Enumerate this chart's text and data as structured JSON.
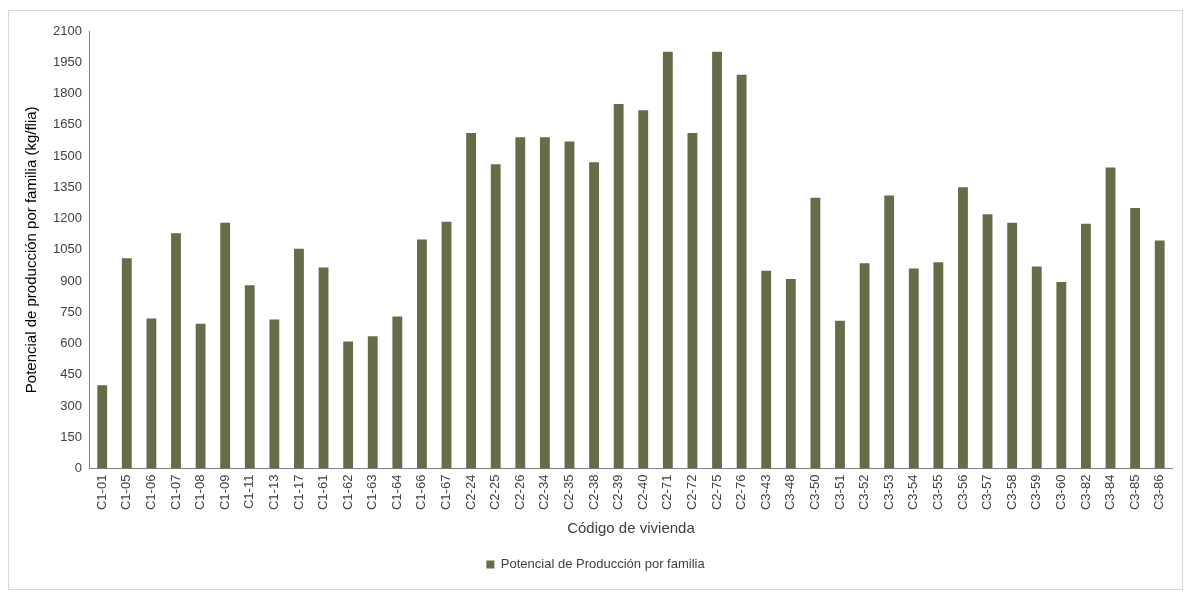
{
  "chart_data": {
    "type": "bar",
    "xlabel": "Código de vivienda",
    "ylabel": "Potencial de producción por familia (kg/flia)",
    "categories": [
      "C1-01",
      "C1-05",
      "C1-06",
      "C1-07",
      "C1-08",
      "C1-09",
      "C1-11",
      "C1-13",
      "C1-17",
      "C1-61",
      "C1-62",
      "C1-63",
      "C1-64",
      "C1-66",
      "C1-67",
      "C2-24",
      "C2-25",
      "C2-26",
      "C2-34",
      "C2-35",
      "C2-38",
      "C2-39",
      "C2-40",
      "C2-71",
      "C2-72",
      "C2-75",
      "C2-76",
      "C3-43",
      "C3-48",
      "C3-50",
      "C3-51",
      "C3-52",
      "C3-53",
      "C3-54",
      "C3-55",
      "C3-56",
      "C3-57",
      "C3-58",
      "C3-59",
      "C3-60",
      "C3-82",
      "C3-84",
      "C3-85",
      "C3-86"
    ],
    "series": [
      {
        "name": "Potencial de Producción por familia",
        "color": "#666b48",
        "values": [
          400,
          1010,
          720,
          1130,
          695,
          1180,
          880,
          715,
          1055,
          965,
          610,
          635,
          730,
          1100,
          1185,
          1610,
          1460,
          1590,
          1590,
          1570,
          1470,
          1750,
          1720,
          2000,
          1610,
          2000,
          1890,
          950,
          910,
          1300,
          710,
          985,
          1310,
          960,
          990,
          1350,
          1220,
          1180,
          970,
          895,
          1175,
          1445,
          1250,
          1095
        ]
      }
    ],
    "ylim": [
      0,
      2100
    ],
    "yticks": [
      0,
      150,
      300,
      450,
      600,
      750,
      900,
      1050,
      1200,
      1350,
      1500,
      1650,
      1800,
      1950,
      2100
    ],
    "grid": false,
    "legend": "bottom"
  }
}
